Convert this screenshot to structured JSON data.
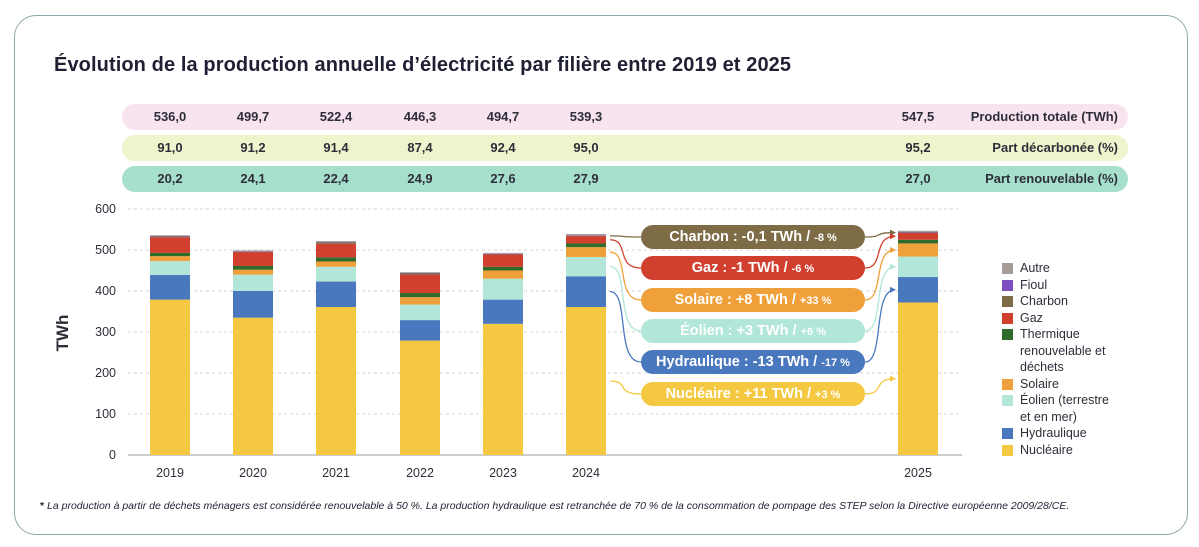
{
  "title": "Évolution de la production annuelle d’électricité par filière entre 2019 et 2025",
  "rows": [
    {
      "label": "Production totale (TWh)",
      "values": [
        "536,0",
        "499,7",
        "522,4",
        "446,3",
        "494,7",
        "539,3",
        "547,5"
      ],
      "color": "#f8e4ef"
    },
    {
      "label": "Part décarbonée (%)",
      "values": [
        "91,0",
        "91,2",
        "91,4",
        "87,4",
        "92,4",
        "95,0",
        "95,2"
      ],
      "color": "#eef4cc"
    },
    {
      "label": "Part renouvelable (%)",
      "values": [
        "20,2",
        "24,1",
        "22,4",
        "24,9",
        "27,6",
        "27,9",
        "27,0"
      ],
      "color": "#a6e0cd"
    }
  ],
  "chart_data": {
    "type": "bar",
    "stacked": true,
    "ylabel": "TWh",
    "ylim": [
      0,
      600
    ],
    "yticks": [
      0,
      100,
      200,
      300,
      400,
      500,
      600
    ],
    "categories": [
      "2019",
      "2020",
      "2021",
      "2022",
      "2023",
      "2024",
      "2025"
    ],
    "series": [
      {
        "name": "Nucléaire",
        "color": "#f5c842",
        "values": [
          379,
          335,
          361,
          279,
          320,
          361,
          372
        ]
      },
      {
        "name": "Hydraulique",
        "color": "#4a78bf",
        "values": [
          60,
          65,
          62,
          50,
          59,
          75,
          62
        ]
      },
      {
        "name": "Éolien (terrestre et en mer)",
        "color": "#b1e6d8",
        "values": [
          34,
          40,
          36,
          38,
          51,
          47,
          50
        ]
      },
      {
        "name": "Solaire",
        "color": "#f0a03a",
        "values": [
          12,
          12,
          13,
          18,
          20,
          24,
          32
        ]
      },
      {
        "name": "Thermique renouvelable et déchets",
        "color": "#2f6b2a",
        "values": [
          8,
          9,
          10,
          10,
          9,
          9,
          9
        ]
      },
      {
        "name": "Gaz",
        "color": "#d1402f",
        "values": [
          38,
          34,
          33,
          45,
          30,
          18,
          17
        ]
      },
      {
        "name": "Charbon",
        "color": "#7d6c46",
        "values": [
          2,
          1,
          4,
          3,
          1,
          1,
          1
        ]
      },
      {
        "name": "Fioul",
        "color": "#7d4fc0",
        "values": [
          1,
          1,
          1,
          1,
          1,
          1,
          1
        ]
      },
      {
        "name": "Autre",
        "color": "#a69c97",
        "values": [
          2,
          2,
          2,
          2,
          2,
          3,
          3
        ]
      }
    ],
    "legend": [
      "Autre",
      "Fioul",
      "Charbon",
      "Gaz",
      "Thermique renouvelable et déchets",
      "Solaire",
      "Éolien (terrestre et en mer)",
      "Hydraulique",
      "Nucléaire"
    ],
    "annotations": [
      {
        "main": "Charbon : -0,1 TWh / ",
        "pct": "-8 %",
        "color": "#7d6c46",
        "series": "Charbon"
      },
      {
        "main": "Gaz : -1 TWh / ",
        "pct": "-6 %",
        "color": "#d1402f",
        "series": "Gaz"
      },
      {
        "main": "Solaire : +8 TWh / ",
        "pct": "+33 %",
        "color": "#f0a03a",
        "series": "Solaire"
      },
      {
        "main": "Éolien : +3 TWh / ",
        "pct": "+6 %",
        "color": "#b1e6d8",
        "series": "Éolien (terrestre et en mer)"
      },
      {
        "main": "Hydraulique : -13 TWh / ",
        "pct": "-17 %",
        "color": "#4a78bf",
        "series": "Hydraulique"
      },
      {
        "main": "Nucléaire : +11 TWh / ",
        "pct": "+3 %",
        "color": "#f5c842",
        "series": "Nucléaire"
      }
    ]
  },
  "legend_labels": {
    "autre": "Autre",
    "fioul": "Fioul",
    "charbon": "Charbon",
    "gaz": "Gaz",
    "thermique": "Thermique renouvelable et déchets",
    "solaire": "Solaire",
    "eolien": "Éolien (terrestre et en mer)",
    "hydraulique": "Hydraulique",
    "nucleaire": "Nucléaire"
  },
  "footnote_star": "*",
  "footnote": "La production à partir de déchets ménagers est considérée renouvelable à 50 %. La production hydraulique est retranchée de 70 % de la consommation de pompage des STEP selon la Directive européenne 2009/28/CE."
}
